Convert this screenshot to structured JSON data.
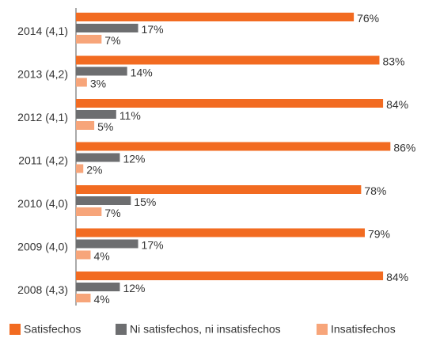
{
  "chart_data": {
    "type": "hbar",
    "categories": [
      "2014 (4,1)",
      "2013 (4,2)",
      "2012 (4,1)",
      "2011 (4,2)",
      "2010 (4,0)",
      "2009 (4,0)",
      "2008 (4,3)"
    ],
    "series": [
      {
        "name": "Satisfechos",
        "color": "#f26b21",
        "values": [
          76,
          83,
          84,
          86,
          78,
          79,
          84
        ],
        "value_labels": [
          "76%",
          "83%",
          "84%",
          "86%",
          "78%",
          "79%",
          "84%"
        ]
      },
      {
        "name": "Ni satisfechos, ni insatisfechos",
        "color": "#6d6e70",
        "values": [
          17,
          14,
          11,
          12,
          15,
          17,
          12
        ],
        "value_labels": [
          "17%",
          "14%",
          "11%",
          "12%",
          "15%",
          "17%",
          "12%"
        ]
      },
      {
        "name": "Insatisfechos",
        "color": "#f7a57a",
        "values": [
          7,
          3,
          5,
          2,
          7,
          4,
          4
        ],
        "value_labels": [
          "7%",
          "3%",
          "5%",
          "2%",
          "7%",
          "4%",
          "4%"
        ]
      }
    ],
    "legend": "bottom"
  }
}
